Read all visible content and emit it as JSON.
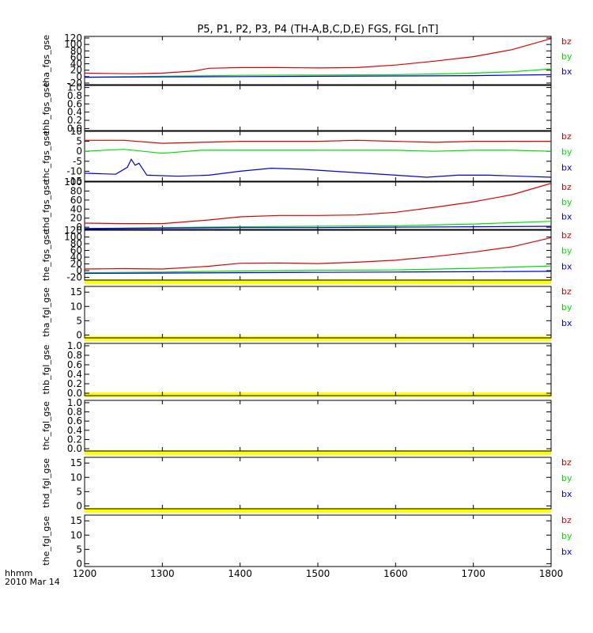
{
  "chart_data": {
    "type": "line",
    "title": "P5, P1, P2, P3, P4 (TH-A,B,C,D,E) FGS, FGL [nT]",
    "x_axis": {
      "range": [
        1200,
        1800
      ],
      "ticks": [
        "1200",
        "1300",
        "1400",
        "1500",
        "1600",
        "1700",
        "1800"
      ],
      "label_line1": "hhmm",
      "label_line2": "2010 Mar 14"
    },
    "series_colors": {
      "bz": "#e00000",
      "by": "#00e000",
      "bx": "#0000e0"
    },
    "legend_labels": [
      "bz",
      "by",
      "bx"
    ],
    "panels": [
      {
        "ylabel": "tha_fgs_gse",
        "ylim": [
          -25,
          125
        ],
        "ticks": [
          "-20",
          "0",
          "20",
          "40",
          "60",
          "80",
          "100",
          "120"
        ],
        "legend": true,
        "series": [
          {
            "name": "bz",
            "x": [
              1200,
              1260,
              1300,
              1340,
              1360,
              1400,
              1450,
              1500,
              1550,
              1600,
              1650,
              1700,
              1750,
              1800
            ],
            "y": [
              11,
              9,
              11,
              17,
              26,
              28,
              28,
              27,
              28,
              36,
              48,
              62,
              84,
              118
            ]
          },
          {
            "name": "by",
            "x": [
              1200,
              1300,
              1400,
              1500,
              1600,
              1650,
              1700,
              1750,
              1800
            ],
            "y": [
              -2,
              1,
              4,
              5,
              6,
              8,
              11,
              15,
              24
            ]
          },
          {
            "name": "bx",
            "x": [
              1200,
              1300,
              1400,
              1500,
              1600,
              1700,
              1800
            ],
            "y": [
              -2,
              -1,
              0,
              1,
              2,
              3,
              6
            ]
          }
        ]
      },
      {
        "ylabel": "thb_fgs_gse",
        "ylim": [
          -0.05,
          1.05
        ],
        "ticks": [
          "0.0",
          "0.2",
          "0.4",
          "0.6",
          "0.8",
          "1.0"
        ],
        "legend": false,
        "series": []
      },
      {
        "ylabel": "thc_fgs_gse",
        "ylim": [
          -15,
          10
        ],
        "ticks": [
          "-15",
          "-10",
          "-5",
          "0",
          "5",
          "10"
        ],
        "legend": true,
        "series": [
          {
            "name": "bz",
            "x": [
              1200,
              1250,
              1300,
              1350,
              1400,
              1450,
              1500,
              1550,
              1600,
              1650,
              1700,
              1750,
              1800
            ],
            "y": [
              5.5,
              5.5,
              4,
              4.5,
              5,
              5,
              5,
              5.5,
              5,
              4.5,
              5,
              5,
              5
            ]
          },
          {
            "name": "by",
            "x": [
              1200,
              1250,
              1300,
              1350,
              1400,
              1450,
              1500,
              1550,
              1600,
              1650,
              1700,
              1750,
              1800
            ],
            "y": [
              0,
              1,
              -1,
              0.5,
              0.5,
              0.5,
              0.5,
              0.5,
              0.5,
              0,
              0.5,
              0.5,
              0
            ]
          },
          {
            "name": "bx",
            "x": [
              1200,
              1240,
              1255,
              1260,
              1265,
              1270,
              1280,
              1320,
              1360,
              1400,
              1440,
              1480,
              1520,
              1560,
              1600,
              1640,
              1680,
              1720,
              1760,
              1800
            ],
            "y": [
              -11,
              -11.5,
              -8,
              -4,
              -7,
              -6,
              -12,
              -12.5,
              -12,
              -10,
              -8.5,
              -9,
              -10,
              -11,
              -12,
              -13,
              -12,
              -12,
              -12.5,
              -13
            ]
          }
        ]
      },
      {
        "ylabel": "thd_fgs_gse",
        "ylim": [
          -5,
          100
        ],
        "ticks": [
          "0",
          "20",
          "40",
          "60",
          "80",
          "100"
        ],
        "legend": true,
        "series": [
          {
            "name": "bz",
            "x": [
              1200,
              1250,
              1300,
              1360,
              1400,
              1450,
              1500,
              1550,
              1600,
              1650,
              1700,
              1750,
              1800
            ],
            "y": [
              9,
              8,
              8,
              16,
              23,
              26,
              26,
              27,
              33,
              44,
              56,
              72,
              97
            ]
          },
          {
            "name": "by",
            "x": [
              1200,
              1300,
              1400,
              1500,
              1600,
              1700,
              1800
            ],
            "y": [
              -3,
              -1,
              1,
              2,
              3,
              7,
              13
            ]
          },
          {
            "name": "bx",
            "x": [
              1200,
              1300,
              1400,
              1500,
              1600,
              1700,
              1800
            ],
            "y": [
              -3,
              -2,
              -1,
              -1,
              0,
              1,
              2
            ]
          }
        ]
      },
      {
        "ylabel": "the_fgs_gse",
        "ylim": [
          -28,
          120
        ],
        "ticks": [
          "-20",
          "0",
          "20",
          "40",
          "60",
          "80",
          "100",
          "120"
        ],
        "legend": true,
        "series": [
          {
            "name": "bz",
            "x": [
              1200,
              1250,
              1300,
              1360,
              1400,
              1450,
              1500,
              1550,
              1600,
              1650,
              1700,
              1750,
              1800
            ],
            "y": [
              5,
              6,
              5,
              13,
              22,
              23,
              21,
              25,
              31,
              42,
              55,
              71,
              98
            ]
          },
          {
            "name": "by",
            "x": [
              1200,
              1300,
              1400,
              1500,
              1600,
              1700,
              1800
            ],
            "y": [
              -6,
              -4,
              -1,
              1,
              2,
              7,
              14
            ]
          },
          {
            "name": "bx",
            "x": [
              1200,
              1300,
              1400,
              1500,
              1600,
              1700,
              1800
            ],
            "y": [
              -8,
              -7,
              -6,
              -5,
              -4,
              -3,
              -2
            ]
          }
        ]
      },
      {
        "ylabel": "tha_fgl_gse",
        "ylim": [
          -1,
          17
        ],
        "ticks": [
          "0",
          "5",
          "10",
          "15"
        ],
        "legend": true,
        "series": []
      },
      {
        "ylabel": "thb_fgl_gse",
        "ylim": [
          -0.05,
          1.05
        ],
        "ticks": [
          "0.0",
          "0.2",
          "0.4",
          "0.6",
          "0.8",
          "1.0"
        ],
        "legend": false,
        "series": []
      },
      {
        "ylabel": "thc_fgl_gse",
        "ylim": [
          -0.05,
          1.05
        ],
        "ticks": [
          "0.0",
          "0.2",
          "0.4",
          "0.6",
          "0.8",
          "1.0"
        ],
        "legend": false,
        "series": []
      },
      {
        "ylabel": "thd_fgl_gse",
        "ylim": [
          -1,
          17
        ],
        "ticks": [
          "0",
          "5",
          "10",
          "15"
        ],
        "legend": true,
        "series": []
      },
      {
        "ylabel": "the_fgl_gse",
        "ylim": [
          -1,
          17
        ],
        "ticks": [
          "0",
          "5",
          "10",
          "15"
        ],
        "legend": true,
        "series": []
      }
    ]
  }
}
